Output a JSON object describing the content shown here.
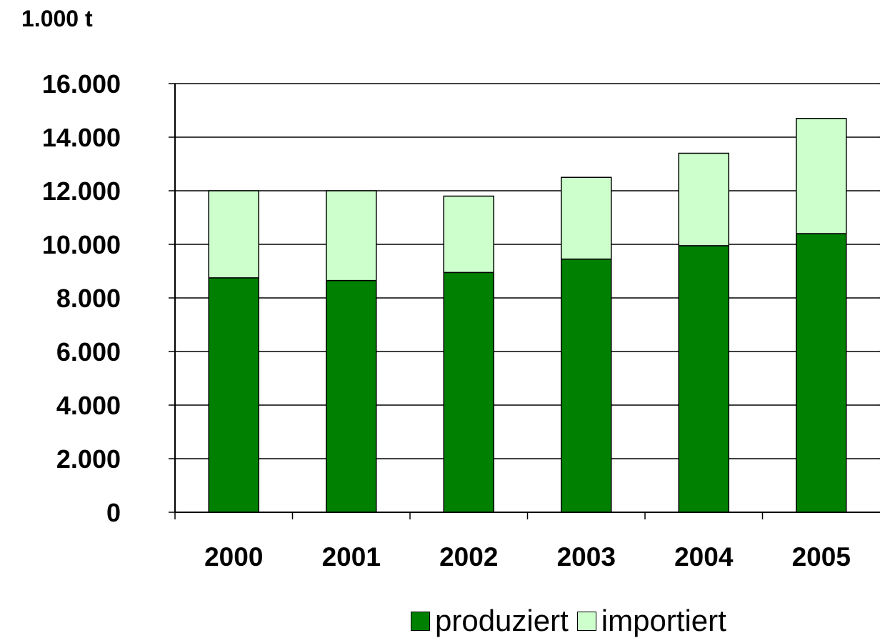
{
  "chart_data": {
    "type": "bar",
    "stacked": true,
    "unit_label": "1.000 t",
    "categories": [
      "2000",
      "2001",
      "2002",
      "2003",
      "2004",
      "2005"
    ],
    "series": [
      {
        "name": "produziert",
        "color": "#008000",
        "values": [
          8750,
          8650,
          8950,
          9450,
          9950,
          10400
        ]
      },
      {
        "name": "importiert",
        "color": "#ccffcc",
        "values": [
          3250,
          3350,
          2850,
          3050,
          3450,
          4300
        ]
      }
    ],
    "ylim": [
      0,
      16000
    ],
    "yticks": [
      "0",
      "2.000",
      "4.000",
      "6.000",
      "8.000",
      "10.000",
      "12.000",
      "14.000",
      "16.000"
    ],
    "grid": true,
    "legend_position": "bottom"
  }
}
